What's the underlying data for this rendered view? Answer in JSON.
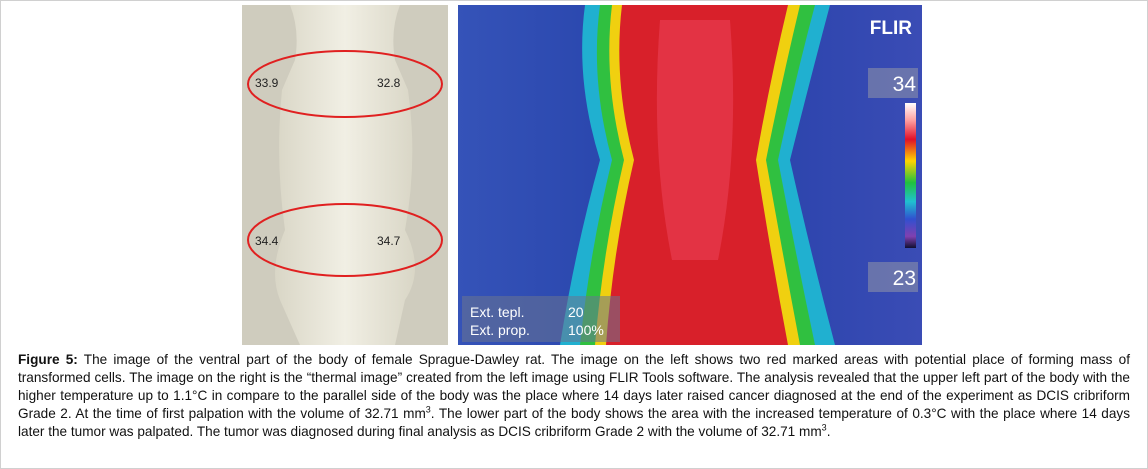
{
  "figure": {
    "left_image": {
      "readings": [
        "33.9",
        "32.8",
        "34.4",
        "34.7"
      ]
    },
    "right_image": {
      "brand": "FLIR",
      "scale_max": "34",
      "scale_min": "23",
      "settings": [
        {
          "label": "Ext. tepl.",
          "value": "20"
        },
        {
          "label": "Ext. prop.",
          "value": "100%"
        }
      ]
    },
    "caption": {
      "label": "Figure 5:",
      "text_1": " The image of the ventral part of the body of female Sprague-Dawley rat. The image on the left shows two red marked areas with potential place of forming mass of transformed cells. The image on the right is the “thermal image” created from the left image using FLIR Tools software. The analysis revealed that the upper left part of the body with the higher temperature up to 1.1°C in compare to the parallel side of the body was the place where 14 days later raised cancer diagnosed at the end of the experiment as DCIS cribriform Grade 2. At the time of first palpation with the volume of 32.71 mm",
      "sup_1": "3",
      "text_2": ". The lower part of the body shows the area with the increased temperature of 0.3°C with the place where 14 days later the tumor was palpated. The tumor was diagnosed during final analysis as DCIS cribriform Grade 2 with the volume of 32.71 mm",
      "sup_2": "3",
      "text_3": "."
    }
  }
}
